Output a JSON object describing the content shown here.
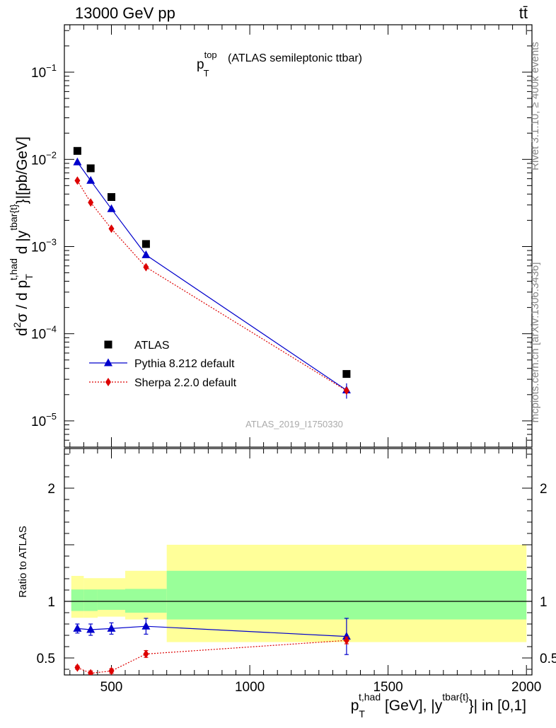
{
  "chart_data": {
    "type": "line",
    "header": {
      "left": "13000 GeV pp",
      "right": "tt̄"
    },
    "title": {
      "main": "p",
      "sup": "top",
      "sub": "T",
      "rest": "(ATLAS semileptonic ttbar)"
    },
    "ylabel_top": "d²σ / d p_T^{t,had} d |y^{tbar{t}}|[pb/GeV]",
    "ylabel_bottom": "Ratio to ATLAS",
    "xlabel": "p_T^{t,had} [GeV], |y^{tbar{t}}| in [0,1]",
    "analysis_id": "ATLAS_2019_I1750330",
    "side_labels": {
      "rivet": "Rivet 3.1.10, ≥ 400k events",
      "site": "mcplots.cern.ch [arXiv:1306.3436]"
    },
    "xlim": [
      330,
      2020
    ],
    "ylim_top": [
      5e-06,
      0.35
    ],
    "ylim_bottom": [
      0.35,
      2.35
    ],
    "x_ticks": [
      {
        "value": 500,
        "label": "500"
      },
      {
        "value": 1000,
        "label": "1000"
      },
      {
        "value": 1500,
        "label": "1500"
      },
      {
        "value": 2000,
        "label": "2000"
      }
    ],
    "y_ticks_top": [
      {
        "value": 1e-05,
        "base": "10",
        "exp": "−5"
      },
      {
        "value": 0.0001,
        "base": "10",
        "exp": "−4"
      },
      {
        "value": 0.001,
        "base": "10",
        "exp": "−3"
      },
      {
        "value": 0.01,
        "base": "10",
        "exp": "−2"
      },
      {
        "value": 0.1,
        "base": "10",
        "exp": "−1"
      }
    ],
    "y_ticks_bottom": [
      {
        "value": 0.5,
        "label": "0.5"
      },
      {
        "value": 1,
        "label": "1"
      },
      {
        "value": 2,
        "label": "2"
      }
    ],
    "bins": [
      {
        "lo": 355,
        "hi": 400,
        "center": 377
      },
      {
        "lo": 400,
        "hi": 450,
        "center": 425
      },
      {
        "lo": 450,
        "hi": 550,
        "center": 500
      },
      {
        "lo": 550,
        "hi": 700,
        "center": 625
      },
      {
        "lo": 700,
        "hi": 2000,
        "center": 1350
      }
    ],
    "series": [
      {
        "name": "ATLAS",
        "marker": "square",
        "color": "#000000",
        "line": "none",
        "values": [
          0.0125,
          0.0079,
          0.0037,
          0.00107,
          3.45e-05
        ]
      },
      {
        "name": "Pythia 8.212 default",
        "marker": "triangle",
        "color": "#0000cc",
        "line": "solid",
        "values": [
          0.0093,
          0.0057,
          0.0027,
          0.0008,
          2.25e-05
        ],
        "errors": [
          0.0002,
          0.0001,
          8e-05,
          3e-05,
          4.5e-06
        ]
      },
      {
        "name": "Sherpa 2.2.0 default",
        "marker": "diamond",
        "color": "#dd0000",
        "line": "dotted",
        "values": [
          0.0057,
          0.0032,
          0.0016,
          0.00058,
          2.22e-05
        ],
        "errors": [
          0.0002,
          0.0001,
          7e-05,
          2e-05,
          2e-06
        ]
      }
    ],
    "ratio": {
      "bands_inner": [
        {
          "lo": 0.915,
          "hi": 1.105
        },
        {
          "lo": 0.915,
          "hi": 1.105
        },
        {
          "lo": 0.925,
          "hi": 1.105
        },
        {
          "lo": 0.9,
          "hi": 1.11
        },
        {
          "lo": 0.84,
          "hi": 1.27
        }
      ],
      "bands_outer": [
        {
          "lo": 0.855,
          "hi": 1.225
        },
        {
          "lo": 0.855,
          "hi": 1.205
        },
        {
          "lo": 0.865,
          "hi": 1.205
        },
        {
          "lo": 0.84,
          "hi": 1.27
        },
        {
          "lo": 0.64,
          "hi": 1.5
        }
      ],
      "series": [
        {
          "name": "Pythia 8.212 default",
          "values": [
            0.76,
            0.75,
            0.76,
            0.78,
            0.69
          ],
          "errors": [
            0.04,
            0.05,
            0.05,
            0.07,
            0.16
          ]
        },
        {
          "name": "Sherpa 2.2.0 default",
          "values": [
            0.415,
            0.365,
            0.385,
            0.535,
            0.655
          ],
          "errors": [
            0.015,
            0.02,
            0.02,
            0.03,
            0.03
          ]
        }
      ]
    },
    "legend_position": "bottom-left"
  }
}
